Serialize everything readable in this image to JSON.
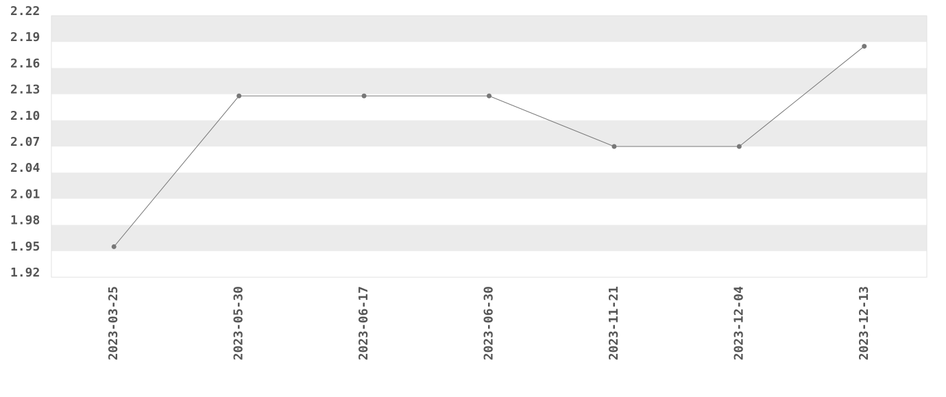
{
  "chart_data": {
    "type": "line",
    "categories": [
      "2023-03-25",
      "2023-05-30",
      "2023-06-17",
      "2023-06-30",
      "2023-11-21",
      "2023-12-04",
      "2023-12-13"
    ],
    "values": [
      1.955,
      2.128,
      2.128,
      2.128,
      2.07,
      2.07,
      2.185
    ],
    "color": "#777777",
    "ylim": [
      1.92,
      2.22
    ],
    "yticks": [
      1.92,
      1.95,
      1.98,
      2.01,
      2.04,
      2.07,
      {
        "value": 2.1,
        "label": "2.10"
      },
      2.13,
      2.16,
      2.19,
      2.22
    ],
    "grid": true
  }
}
